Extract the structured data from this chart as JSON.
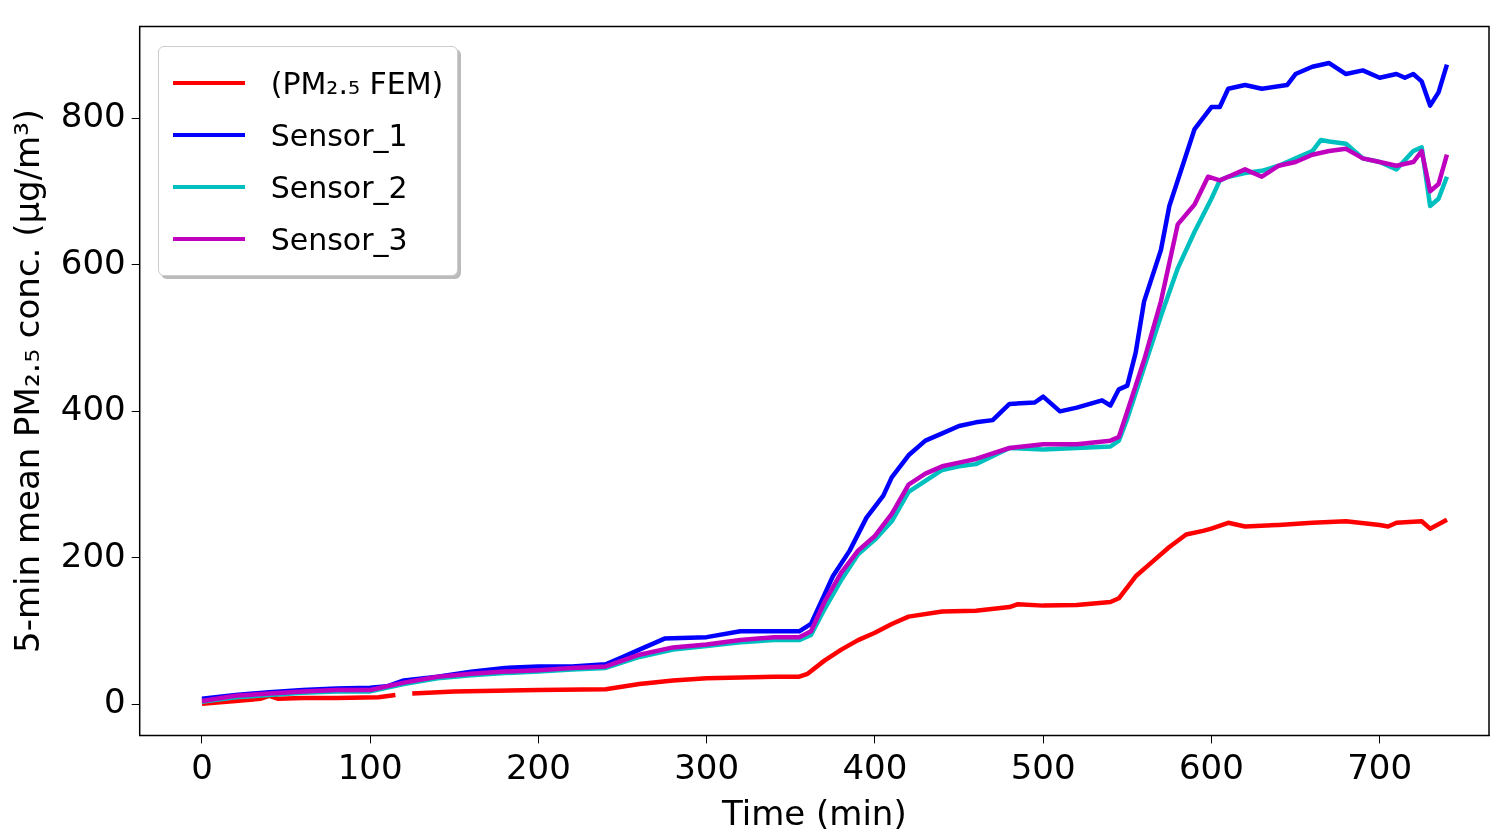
{
  "chart_data": {
    "type": "line",
    "xlabel": "Time (min)",
    "ylabel": "5-min mean PM₂.₅ conc. (μg/m³)",
    "xlim": [
      -37,
      765
    ],
    "ylim": [
      -42,
      925
    ],
    "xticks": [
      0,
      100,
      200,
      300,
      400,
      500,
      600,
      700
    ],
    "yticks": [
      0,
      200,
      400,
      600,
      800
    ],
    "grid": false,
    "legend": "top left",
    "marker": "none",
    "line_style": "solid",
    "series": [
      {
        "name": "(PM₂.₅ FEM)",
        "color": "#ff0000",
        "x": [
          0,
          20,
          35,
          40,
          45,
          60,
          80,
          105,
          115,
          120,
          125,
          150,
          200,
          240,
          260,
          280,
          300,
          340,
          355,
          360,
          370,
          380,
          390,
          400,
          410,
          420,
          440,
          460,
          480,
          485,
          500,
          520,
          540,
          545,
          555,
          565,
          575,
          585,
          595,
          600,
          610,
          620,
          640,
          660,
          680,
          700,
          705,
          710,
          725,
          730,
          740
        ],
        "values": [
          1,
          5,
          8,
          12,
          8,
          9,
          9,
          10,
          13,
          null,
          15,
          18,
          20,
          21,
          28,
          33,
          36,
          38,
          38,
          42,
          60,
          75,
          88,
          98,
          110,
          120,
          127,
          128,
          133,
          137,
          135,
          136,
          140,
          145,
          175,
          195,
          215,
          232,
          237,
          240,
          248,
          243,
          245,
          248,
          250,
          245,
          243,
          248,
          250,
          240,
          252
        ]
      },
      {
        "name": "Sensor_1",
        "color": "#0000ff",
        "x": [
          0,
          20,
          40,
          60,
          80,
          100,
          110,
          120,
          140,
          160,
          180,
          200,
          220,
          240,
          250,
          260,
          275,
          300,
          320,
          340,
          355,
          362,
          370,
          375,
          385,
          395,
          405,
          410,
          420,
          430,
          440,
          450,
          460,
          470,
          480,
          495,
          500,
          510,
          520,
          535,
          540,
          545,
          550,
          555,
          560,
          570,
          575,
          585,
          590,
          600,
          605,
          610,
          620,
          630,
          645,
          650,
          660,
          670,
          680,
          690,
          700,
          710,
          715,
          720,
          725,
          730,
          735,
          740
        ],
        "values": [
          8,
          13,
          17,
          20,
          22,
          23,
          25,
          33,
          38,
          45,
          50,
          52,
          52,
          55,
          65,
          75,
          90,
          92,
          100,
          100,
          100,
          110,
          150,
          175,
          210,
          255,
          285,
          310,
          340,
          360,
          370,
          380,
          385,
          388,
          410,
          412,
          420,
          400,
          405,
          415,
          408,
          430,
          435,
          480,
          550,
          620,
          680,
          750,
          785,
          815,
          815,
          840,
          845,
          840,
          845,
          860,
          870,
          875,
          860,
          865,
          855,
          860,
          855,
          860,
          850,
          817,
          835,
          873
        ]
      },
      {
        "name": "Sensor_2",
        "color": "#00bfbf",
        "x": [
          0,
          20,
          40,
          60,
          80,
          100,
          120,
          140,
          160,
          180,
          200,
          220,
          240,
          260,
          280,
          300,
          320,
          340,
          355,
          362,
          370,
          380,
          390,
          400,
          410,
          420,
          430,
          440,
          450,
          460,
          480,
          500,
          520,
          540,
          545,
          550,
          560,
          570,
          580,
          590,
          600,
          605,
          610,
          620,
          630,
          640,
          650,
          660,
          665,
          670,
          680,
          690,
          700,
          710,
          720,
          725,
          730,
          735,
          740
        ],
        "values": [
          4,
          10,
          13,
          16,
          18,
          18,
          28,
          36,
          40,
          43,
          45,
          48,
          50,
          65,
          75,
          80,
          85,
          88,
          88,
          95,
          130,
          170,
          205,
          225,
          250,
          290,
          305,
          320,
          325,
          328,
          350,
          348,
          350,
          352,
          360,
          390,
          460,
          530,
          595,
          645,
          690,
          715,
          720,
          725,
          728,
          735,
          745,
          755,
          770,
          768,
          765,
          745,
          740,
          730,
          755,
          760,
          680,
          690,
          720
        ]
      },
      {
        "name": "Sensor_3",
        "color": "#bf00bf",
        "x": [
          0,
          20,
          40,
          60,
          80,
          100,
          120,
          140,
          160,
          180,
          200,
          220,
          240,
          260,
          280,
          300,
          320,
          340,
          355,
          362,
          370,
          380,
          390,
          400,
          410,
          420,
          430,
          440,
          450,
          460,
          480,
          500,
          520,
          540,
          545,
          550,
          560,
          570,
          580,
          590,
          598,
          605,
          610,
          620,
          630,
          640,
          650,
          660,
          670,
          680,
          690,
          700,
          710,
          720,
          725,
          730,
          735,
          740
        ],
        "values": [
          5,
          12,
          15,
          18,
          20,
          20,
          30,
          38,
          42,
          45,
          47,
          50,
          52,
          68,
          78,
          82,
          88,
          92,
          92,
          100,
          140,
          180,
          210,
          230,
          260,
          300,
          315,
          325,
          330,
          335,
          350,
          355,
          355,
          360,
          365,
          400,
          470,
          550,
          655,
          682,
          720,
          715,
          720,
          730,
          720,
          735,
          740,
          750,
          755,
          758,
          745,
          740,
          735,
          740,
          755,
          700,
          710,
          750
        ]
      }
    ]
  }
}
